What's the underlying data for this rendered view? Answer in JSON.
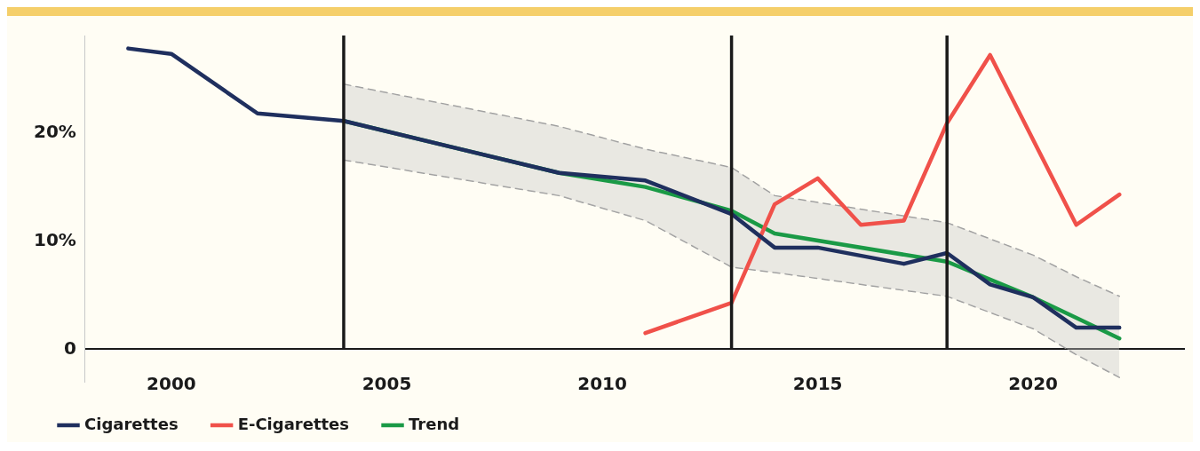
{
  "chart_data": {
    "type": "line",
    "xlim": [
      1998,
      2023.5
    ],
    "xticks": [
      2000,
      2005,
      2010,
      2015,
      2020
    ],
    "ylim": [
      -3,
      29
    ],
    "yticks": [
      {
        "value": 0,
        "label": "0"
      },
      {
        "value": 10,
        "label": "10%"
      },
      {
        "value": 20,
        "label": "20%"
      }
    ],
    "grid": false,
    "legend": "bottom left",
    "marker": "none",
    "line_style": "solid",
    "ref_lines": [
      {
        "axis": "x",
        "value": 2004,
        "color": "#1a1a1a"
      },
      {
        "axis": "x",
        "value": 2013,
        "color": "#1a1a1a"
      },
      {
        "axis": "x",
        "value": 2018,
        "color": "#1a1a1a"
      }
    ],
    "series": [
      {
        "name": "Cigarettes",
        "color": "#1f2f5e",
        "x": [
          1999,
          2000,
          2002,
          2004,
          2009,
          2011,
          2013,
          2014,
          2015,
          2017,
          2018,
          2019,
          2020,
          2021,
          2022
        ],
        "values": [
          27.8,
          27.3,
          21.8,
          21.1,
          16.3,
          15.6,
          12.5,
          9.4,
          9.4,
          7.9,
          8.9,
          6.0,
          4.8,
          2.0,
          2.0
        ]
      },
      {
        "name": "E-Cigarettes",
        "color": "#f0514a",
        "x": [
          2011,
          2013,
          2014,
          2015,
          2016,
          2017,
          2018,
          2019,
          2021,
          2022
        ],
        "values": [
          1.5,
          4.3,
          13.4,
          15.8,
          11.5,
          11.9,
          20.9,
          27.2,
          11.5,
          14.3
        ]
      },
      {
        "name": "Trend",
        "color": "#1a9a46",
        "x": [
          2004,
          2009,
          2011,
          2013,
          2014,
          2018,
          2020,
          2021,
          2022
        ],
        "values": [
          21.1,
          16.3,
          15.0,
          12.8,
          10.7,
          8.1,
          4.8,
          2.9,
          1.0
        ],
        "upper": [
          24.5,
          20.6,
          18.5,
          16.8,
          14.2,
          11.7,
          8.7,
          6.7,
          4.9
        ],
        "lower": [
          17.5,
          14.2,
          11.9,
          7.6,
          7.1,
          4.9,
          1.9,
          -0.5,
          -2.6
        ]
      },
      {
        "color": "#9a9a9a",
        "line_style": "dashed",
        "x": [
          2004,
          2009,
          2011,
          2013,
          2014,
          2018,
          2020,
          2021,
          2022
        ],
        "values": [
          24.5,
          20.6,
          18.5,
          16.8,
          14.2,
          11.7,
          8.7,
          6.7,
          4.9
        ]
      },
      {
        "color": "#9a9a9a",
        "line_style": "dashed",
        "x": [
          2004,
          2009,
          2011,
          2013,
          2014,
          2018,
          2020,
          2021,
          2022
        ],
        "values": [
          17.5,
          14.2,
          11.9,
          7.6,
          7.1,
          4.9,
          1.9,
          -0.5,
          -2.6
        ]
      }
    ]
  }
}
